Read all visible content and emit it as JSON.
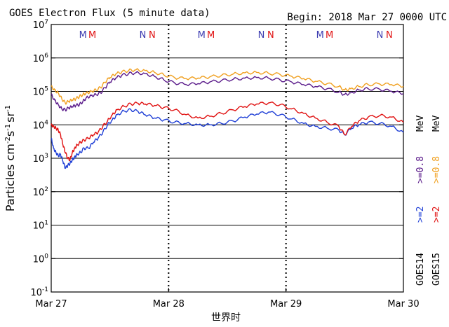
{
  "header": {
    "title": "GOES Electron Flux (5 minute data)",
    "begin": "Begin: 2018 Mar 27 0000 UTC"
  },
  "axes": {
    "ylabel_main": "Particles cm",
    "ylabel_sup1": "-2",
    "ylabel_s": "s",
    "ylabel_sup2": "-1",
    "ylabel_sr": "sr",
    "ylabel_sup3": "-1",
    "xlabel": "世界时"
  },
  "legend": {
    "goes14": "GOES14",
    "goes15": "GOES15",
    "g14_2": ">=2",
    "g15_2": ">=2",
    "g14_08": ">=0.8",
    "g15_08": ">=0.8",
    "mev1": "MeV",
    "mev2": "MeV"
  },
  "colors": {
    "goes14_2mev": "#1f3fd6",
    "goes15_2mev": "#e01010",
    "goes14_08mev": "#5a1a8a",
    "goes15_08mev": "#f0a020",
    "marker_m1": "#3a3ab0",
    "marker_m2": "#e01010"
  },
  "chart_data": {
    "type": "line",
    "ylim": [
      0.1,
      10000000
    ],
    "yscale": "log",
    "yticks": [
      {
        "label": "10",
        "sup": "7"
      },
      {
        "label": "10",
        "sup": "6"
      },
      {
        "label": "10",
        "sup": "5"
      },
      {
        "label": "10",
        "sup": "4"
      },
      {
        "label": "10",
        "sup": "3"
      },
      {
        "label": "10",
        "sup": "2"
      },
      {
        "label": "10",
        "sup": "1"
      },
      {
        "label": "10",
        "sup": "0"
      },
      {
        "label": "10",
        "sup": "-1"
      }
    ],
    "xticks": [
      "Mar 27",
      "Mar 28",
      "Mar 29",
      "Mar 30"
    ],
    "threshold": 1000,
    "markers": [
      {
        "day": 0.27,
        "text": "M",
        "colorKey": "marker_m1"
      },
      {
        "day": 0.35,
        "text": "M",
        "colorKey": "marker_m2"
      },
      {
        "day": 0.78,
        "text": "N",
        "colorKey": "marker_m1"
      },
      {
        "day": 0.86,
        "text": "N",
        "colorKey": "marker_m2"
      },
      {
        "day": 1.28,
        "text": "M",
        "colorKey": "marker_m1"
      },
      {
        "day": 1.36,
        "text": "M",
        "colorKey": "marker_m2"
      },
      {
        "day": 1.79,
        "text": "N",
        "colorKey": "marker_m1"
      },
      {
        "day": 1.87,
        "text": "N",
        "colorKey": "marker_m2"
      },
      {
        "day": 2.29,
        "text": "M",
        "colorKey": "marker_m1"
      },
      {
        "day": 2.37,
        "text": "M",
        "colorKey": "marker_m2"
      },
      {
        "day": 2.8,
        "text": "N",
        "colorKey": "marker_m1"
      },
      {
        "day": 2.88,
        "text": "N",
        "colorKey": "marker_m2"
      }
    ],
    "series": [
      {
        "name": "GOES14 >=0.8 MeV",
        "colorKey": "goes14_08mev",
        "x": [
          0,
          0.03,
          0.06,
          0.09,
          0.12,
          0.15,
          0.18,
          0.21,
          0.24,
          0.27,
          0.3,
          0.34,
          0.38,
          0.42,
          0.46,
          0.5,
          0.55,
          0.6,
          0.66,
          0.72,
          0.8,
          0.88,
          0.96,
          1.05,
          1.15,
          1.25,
          1.35,
          1.45,
          1.55,
          1.65,
          1.75,
          1.85,
          1.95,
          2.05,
          2.15,
          2.25,
          2.35,
          2.45,
          2.5,
          2.55,
          2.62,
          2.7,
          2.8,
          2.9,
          3.0
        ],
        "values": [
          80000,
          55000,
          40000,
          30000,
          28000,
          32000,
          35000,
          38000,
          40000,
          50000,
          65000,
          75000,
          80000,
          90000,
          130000,
          190000,
          250000,
          300000,
          340000,
          360000,
          340000,
          280000,
          220000,
          180000,
          160000,
          170000,
          190000,
          210000,
          230000,
          250000,
          260000,
          250000,
          220000,
          190000,
          160000,
          140000,
          120000,
          95000,
          80000,
          90000,
          110000,
          120000,
          115000,
          100000,
          85000
        ]
      },
      {
        "name": "GOES15 >=0.8 MeV",
        "colorKey": "goes15_08mev",
        "x": [
          0,
          0.03,
          0.06,
          0.09,
          0.12,
          0.15,
          0.18,
          0.21,
          0.24,
          0.27,
          0.3,
          0.34,
          0.38,
          0.42,
          0.46,
          0.5,
          0.55,
          0.6,
          0.66,
          0.72,
          0.8,
          0.88,
          0.96,
          1.05,
          1.15,
          1.25,
          1.35,
          1.45,
          1.55,
          1.65,
          1.75,
          1.85,
          1.95,
          2.05,
          2.15,
          2.25,
          2.35,
          2.45,
          2.5,
          2.55,
          2.62,
          2.7,
          2.8,
          2.9,
          3.0
        ],
        "values": [
          140000,
          110000,
          90000,
          60000,
          45000,
          50000,
          55000,
          60000,
          70000,
          80000,
          90000,
          100000,
          110000,
          130000,
          190000,
          260000,
          330000,
          380000,
          420000,
          440000,
          420000,
          370000,
          310000,
          260000,
          240000,
          250000,
          270000,
          300000,
          330000,
          360000,
          370000,
          350000,
          320000,
          280000,
          240000,
          200000,
          170000,
          140000,
          110000,
          120000,
          140000,
          160000,
          165000,
          160000,
          140000
        ]
      },
      {
        "name": "GOES14 >=2 MeV",
        "colorKey": "goes14_2mev",
        "x": [
          0,
          0.02,
          0.04,
          0.06,
          0.08,
          0.1,
          0.12,
          0.14,
          0.16,
          0.18,
          0.2,
          0.22,
          0.25,
          0.28,
          0.32,
          0.36,
          0.4,
          0.44,
          0.48,
          0.52,
          0.56,
          0.62,
          0.68,
          0.74,
          0.8,
          0.88,
          0.96,
          1.05,
          1.15,
          1.25,
          1.35,
          1.45,
          1.55,
          1.65,
          1.75,
          1.85,
          1.95,
          2.05,
          2.15,
          2.25,
          2.35,
          2.45,
          2.5,
          2.56,
          2.62,
          2.7,
          2.8,
          2.9,
          3.0
        ],
        "values": [
          4000,
          2000,
          1500,
          1200,
          1300,
          800,
          500,
          600,
          700,
          900,
          1100,
          1300,
          1500,
          2000,
          2000,
          3000,
          4000,
          6000,
          10000,
          14000,
          20000,
          26000,
          28000,
          25000,
          20000,
          16000,
          14000,
          12000,
          11000,
          10000,
          10000,
          11000,
          13000,
          17000,
          21000,
          24000,
          20000,
          15000,
          11000,
          9000,
          8000,
          7000,
          5000,
          8000,
          10000,
          12000,
          11000,
          9000,
          6000
        ]
      },
      {
        "name": "GOES15 >=2 MeV",
        "colorKey": "goes15_2mev",
        "x": [
          0,
          0.02,
          0.04,
          0.06,
          0.08,
          0.1,
          0.12,
          0.14,
          0.16,
          0.18,
          0.2,
          0.22,
          0.25,
          0.28,
          0.32,
          0.36,
          0.4,
          0.44,
          0.48,
          0.52,
          0.56,
          0.62,
          0.68,
          0.74,
          0.8,
          0.88,
          0.96,
          1.05,
          1.15,
          1.25,
          1.35,
          1.45,
          1.55,
          1.65,
          1.75,
          1.85,
          1.95,
          2.05,
          2.15,
          2.25,
          2.35,
          2.45,
          2.5,
          2.56,
          2.62,
          2.7,
          2.8,
          2.9,
          3.0
        ],
        "values": [
          10000,
          9000,
          8000,
          7000,
          5000,
          2500,
          1500,
          1000,
          900,
          1500,
          2000,
          2500,
          3000,
          3500,
          4000,
          5000,
          6000,
          9000,
          13000,
          20000,
          28000,
          36000,
          42000,
          44000,
          42000,
          38000,
          33000,
          28000,
          20000,
          16000,
          18000,
          22000,
          28000,
          35000,
          42000,
          45000,
          40000,
          30000,
          22000,
          16000,
          12000,
          9000,
          5000,
          9000,
          13000,
          17000,
          19000,
          17000,
          12000
        ]
      }
    ]
  }
}
